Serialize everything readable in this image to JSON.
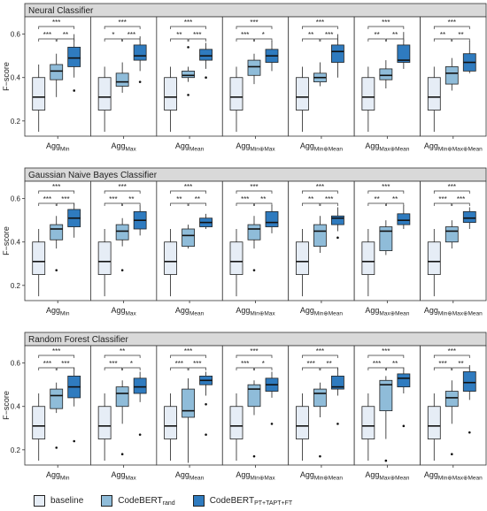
{
  "legend": {
    "baseline": "baseline",
    "rand_main": "CodeBERT",
    "rand_sub": "rand",
    "pt_main": "CodeBERT",
    "pt_sub": "PT+TAPT+FT"
  },
  "colors": {
    "baseline": "#e6edf6",
    "rand": "#8fbcd9",
    "pt": "#2f7bbf",
    "strip": "#d9d9d9"
  },
  "aggs": [
    {
      "main": "Agg",
      "sub": "Min"
    },
    {
      "main": "Agg",
      "sub": "Max"
    },
    {
      "main": "Agg",
      "sub": "Mean"
    },
    {
      "main": "Agg",
      "sub": "Min⊕Max"
    },
    {
      "main": "Agg",
      "sub": "Min⊕Mean"
    },
    {
      "main": "Agg",
      "sub": "Max⊕Mean"
    },
    {
      "main": "Agg",
      "sub": "Min⊕Max⊕Mean"
    }
  ],
  "chart_data": [
    {
      "type": "box",
      "title": "Neural Classifier",
      "ylabel": "F−score",
      "yticks": [
        0.2,
        0.4,
        0.6
      ],
      "ylim": [
        0.13,
        0.68
      ],
      "groups": [
        {
          "boxes": [
            [
              0.15,
              0.25,
              0.31,
              0.4,
              0.46
            ],
            [
              0.31,
              0.39,
              0.43,
              0.46,
              0.51
            ],
            [
              0.4,
              0.45,
              0.49,
              0.54,
              0.6
            ]
          ],
          "outliers": [
            [],
            [],
            [
              0.34
            ]
          ],
          "sig": [
            "***",
            "***",
            "**"
          ]
        },
        {
          "boxes": [
            [
              0.15,
              0.25,
              0.31,
              0.4,
              0.45
            ],
            [
              0.33,
              0.36,
              0.38,
              0.42,
              0.47
            ],
            [
              0.43,
              0.48,
              0.5,
              0.55,
              0.59
            ]
          ],
          "outliers": [
            [],
            [],
            [
              0.38
            ]
          ],
          "sig": [
            "***",
            "*",
            "***"
          ]
        },
        {
          "boxes": [
            [
              0.15,
              0.25,
              0.31,
              0.4,
              0.45
            ],
            [
              0.38,
              0.4,
              0.41,
              0.43,
              0.45
            ],
            [
              0.44,
              0.48,
              0.5,
              0.53,
              0.56
            ]
          ],
          "outliers": [
            [],
            [
              0.32,
              0.54
            ],
            [
              0.4
            ]
          ],
          "sig": [
            "***",
            "**",
            "***"
          ]
        },
        {
          "boxes": [
            [
              0.15,
              0.25,
              0.31,
              0.4,
              0.45
            ],
            [
              0.37,
              0.41,
              0.45,
              0.48,
              0.51
            ],
            [
              0.43,
              0.47,
              0.5,
              0.53,
              0.57
            ]
          ],
          "outliers": [
            [],
            [],
            []
          ],
          "sig": [
            "***",
            "***",
            "*"
          ]
        },
        {
          "boxes": [
            [
              0.15,
              0.25,
              0.31,
              0.4,
              0.45
            ],
            [
              0.36,
              0.38,
              0.4,
              0.42,
              0.47
            ],
            [
              0.4,
              0.47,
              0.52,
              0.55,
              0.6
            ]
          ],
          "outliers": [
            [],
            [],
            []
          ],
          "sig": [
            "***",
            "**",
            "***"
          ]
        },
        {
          "boxes": [
            [
              0.15,
              0.25,
              0.31,
              0.4,
              0.45
            ],
            [
              0.35,
              0.39,
              0.41,
              0.44,
              0.48
            ],
            [
              0.44,
              0.47,
              0.48,
              0.55,
              0.61
            ]
          ],
          "outliers": [
            [],
            [],
            []
          ],
          "sig": [
            "***",
            "**",
            "**"
          ]
        },
        {
          "boxes": [
            [
              0.15,
              0.25,
              0.31,
              0.4,
              0.45
            ],
            [
              0.34,
              0.37,
              0.42,
              0.45,
              0.49
            ],
            [
              0.42,
              0.43,
              0.47,
              0.51,
              0.57
            ]
          ],
          "outliers": [
            [],
            [],
            []
          ],
          "sig": [
            "***",
            "**",
            "**"
          ]
        }
      ]
    },
    {
      "type": "box",
      "title": "Gaussian Naive Bayes Classifier",
      "ylabel": "F−score",
      "yticks": [
        0.2,
        0.4,
        0.6
      ],
      "ylim": [
        0.13,
        0.68
      ],
      "groups": [
        {
          "boxes": [
            [
              0.15,
              0.25,
              0.31,
              0.4,
              0.46
            ],
            [
              0.37,
              0.41,
              0.46,
              0.48,
              0.52
            ],
            [
              0.42,
              0.47,
              0.51,
              0.55,
              0.58
            ]
          ],
          "outliers": [
            [],
            [
              0.27
            ],
            []
          ],
          "sig": [
            "***",
            "***",
            "***"
          ]
        },
        {
          "boxes": [
            [
              0.15,
              0.25,
              0.31,
              0.4,
              0.46
            ],
            [
              0.38,
              0.41,
              0.45,
              0.48,
              0.51
            ],
            [
              0.43,
              0.46,
              0.5,
              0.54,
              0.57
            ]
          ],
          "outliers": [
            [],
            [
              0.27
            ],
            []
          ],
          "sig": [
            "***",
            "***",
            "**"
          ]
        },
        {
          "boxes": [
            [
              0.15,
              0.25,
              0.31,
              0.4,
              0.46
            ],
            [
              0.37,
              0.38,
              0.43,
              0.46,
              0.48
            ],
            [
              0.46,
              0.47,
              0.49,
              0.51,
              0.53
            ]
          ],
          "outliers": [
            [],
            [],
            []
          ],
          "sig": [
            "***",
            "**",
            "**"
          ]
        },
        {
          "boxes": [
            [
              0.15,
              0.25,
              0.31,
              0.4,
              0.46
            ],
            [
              0.37,
              0.41,
              0.46,
              0.48,
              0.52
            ],
            [
              0.44,
              0.47,
              0.49,
              0.54,
              0.57
            ]
          ],
          "outliers": [
            [],
            [
              0.27
            ],
            []
          ],
          "sig": [
            "***",
            "***",
            "**"
          ]
        },
        {
          "boxes": [
            [
              0.15,
              0.25,
              0.31,
              0.4,
              0.46
            ],
            [
              0.35,
              0.38,
              0.45,
              0.48,
              0.52
            ],
            [
              0.45,
              0.48,
              0.51,
              0.52,
              0.56
            ]
          ],
          "outliers": [
            [],
            [],
            [
              0.42
            ]
          ],
          "sig": [
            "***",
            "**",
            "***"
          ]
        },
        {
          "boxes": [
            [
              0.15,
              0.25,
              0.31,
              0.4,
              0.46
            ],
            [
              0.34,
              0.36,
              0.45,
              0.47,
              0.5
            ],
            [
              0.46,
              0.48,
              0.5,
              0.53,
              0.57
            ]
          ],
          "outliers": [
            [],
            [],
            []
          ],
          "sig": [
            "***",
            "**",
            "**"
          ]
        },
        {
          "boxes": [
            [
              0.15,
              0.25,
              0.31,
              0.4,
              0.46
            ],
            [
              0.37,
              0.4,
              0.45,
              0.47,
              0.5
            ],
            [
              0.46,
              0.49,
              0.51,
              0.54,
              0.56
            ]
          ],
          "outliers": [
            [],
            [],
            []
          ],
          "sig": [
            "***",
            "***",
            "***"
          ]
        }
      ]
    },
    {
      "type": "box",
      "title": "Random Forest Classifier",
      "ylabel": "F−score",
      "yticks": [
        0.2,
        0.4,
        0.6
      ],
      "ylim": [
        0.13,
        0.68
      ],
      "groups": [
        {
          "boxes": [
            [
              0.15,
              0.25,
              0.31,
              0.4,
              0.46
            ],
            [
              0.37,
              0.39,
              0.45,
              0.48,
              0.51
            ],
            [
              0.4,
              0.44,
              0.49,
              0.54,
              0.58
            ]
          ],
          "outliers": [
            [],
            [
              0.21
            ],
            [
              0.24
            ]
          ],
          "sig": [
            "***",
            "***",
            "***"
          ]
        },
        {
          "boxes": [
            [
              0.15,
              0.25,
              0.31,
              0.4,
              0.46
            ],
            [
              0.32,
              0.4,
              0.46,
              0.49,
              0.52
            ],
            [
              0.42,
              0.46,
              0.49,
              0.53,
              0.56
            ]
          ],
          "outliers": [
            [],
            [
              0.18
            ],
            [
              0.27
            ]
          ],
          "sig": [
            "**",
            "***",
            "*"
          ]
        },
        {
          "boxes": [
            [
              0.15,
              0.25,
              0.31,
              0.4,
              0.46
            ],
            [
              0.14,
              0.35,
              0.38,
              0.48,
              0.53
            ],
            [
              0.45,
              0.5,
              0.52,
              0.54,
              0.56
            ]
          ],
          "outliers": [
            [],
            [],
            [
              0.41,
              0.27
            ]
          ],
          "sig": [
            "***",
            "***",
            "***"
          ]
        },
        {
          "boxes": [
            [
              0.15,
              0.25,
              0.31,
              0.4,
              0.46
            ],
            [
              0.36,
              0.4,
              0.48,
              0.5,
              0.52
            ],
            [
              0.44,
              0.47,
              0.5,
              0.53,
              0.56
            ]
          ],
          "outliers": [
            [],
            [
              0.17
            ],
            [
              0.32
            ]
          ],
          "sig": [
            "***",
            "***",
            "*"
          ]
        },
        {
          "boxes": [
            [
              0.15,
              0.25,
              0.31,
              0.4,
              0.46
            ],
            [
              0.35,
              0.4,
              0.46,
              0.48,
              0.51
            ],
            [
              0.45,
              0.48,
              0.49,
              0.54,
              0.58
            ]
          ],
          "outliers": [
            [],
            [
              0.17
            ],
            [
              0.32
            ]
          ],
          "sig": [
            "***",
            "***",
            "**"
          ]
        },
        {
          "boxes": [
            [
              0.15,
              0.25,
              0.31,
              0.4,
              0.46
            ],
            [
              0.25,
              0.38,
              0.5,
              0.52,
              0.54
            ],
            [
              0.46,
              0.49,
              0.53,
              0.55,
              0.58
            ]
          ],
          "outliers": [
            [],
            [
              0.15
            ],
            [
              0.31
            ]
          ],
          "sig": [
            "***",
            "***",
            "**"
          ]
        },
        {
          "boxes": [
            [
              0.15,
              0.25,
              0.31,
              0.4,
              0.46
            ],
            [
              0.32,
              0.4,
              0.44,
              0.47,
              0.52
            ],
            [
              0.43,
              0.47,
              0.51,
              0.56,
              0.59
            ]
          ],
          "outliers": [
            [],
            [
              0.18
            ],
            [
              0.28
            ]
          ],
          "sig": [
            "***",
            "***",
            "**"
          ]
        }
      ]
    }
  ]
}
